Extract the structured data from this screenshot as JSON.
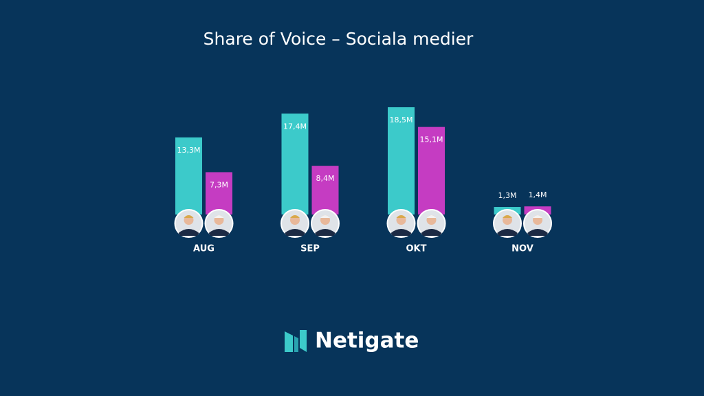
{
  "chart_data": {
    "type": "bar",
    "title": "Share of Voice – Sociala medier",
    "categories": [
      "AUG",
      "SEP",
      "OKT",
      "NOV"
    ],
    "series": [
      {
        "color": "#3ccaca",
        "values": [
          13.3,
          17.4,
          18.5,
          1.3
        ],
        "value_labels": [
          "13,3M",
          "17,4M",
          "18,5M",
          "1,3M"
        ]
      },
      {
        "color": "#c53cc2",
        "values": [
          7.3,
          8.4,
          15.1,
          1.4
        ],
        "value_labels": [
          "7,3M",
          "8,4M",
          "15,1M",
          "1,4M"
        ]
      }
    ]
  },
  "brand": "Netigate"
}
